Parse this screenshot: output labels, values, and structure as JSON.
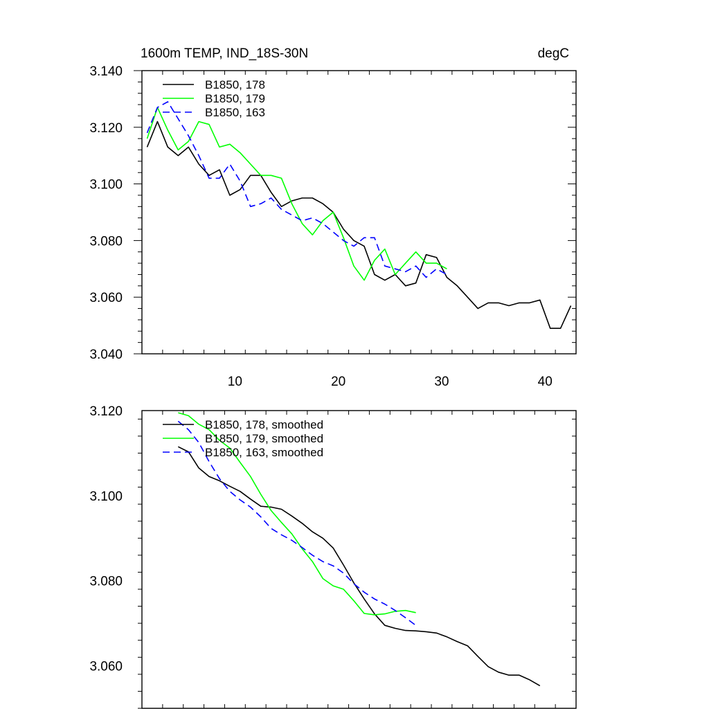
{
  "chart_data": [
    {
      "type": "line",
      "title": "1600m TEMP, IND_18S-30N",
      "units": "degC",
      "xlabel": "",
      "ylabel": "",
      "xlim": [
        1,
        43
      ],
      "ylim": [
        3.04,
        3.14
      ],
      "x_ticks": [
        10,
        20,
        30,
        40
      ],
      "x_tick_labels": [
        "10",
        "20",
        "30",
        "40"
      ],
      "y_ticks": [
        3.04,
        3.06,
        3.08,
        3.1,
        3.12,
        3.14
      ],
      "y_tick_labels": [
        "3.040",
        "3.060",
        "3.080",
        "3.100",
        "3.120",
        "3.140"
      ],
      "legend_position": "top-left",
      "series": [
        {
          "name": "B1850, 178",
          "color": "#000000",
          "dash": "solid",
          "x": [
            1.5,
            2.5,
            3.5,
            4.5,
            5.5,
            6.5,
            7.5,
            8.5,
            9.5,
            10.5,
            11.5,
            12.5,
            13.5,
            14.5,
            15.5,
            16.5,
            17.5,
            18.5,
            19.5,
            20.5,
            21.5,
            22.5,
            23.5,
            24.5,
            25.5,
            26.5,
            27.5,
            28.5,
            29.5,
            30.5,
            31.5,
            32.5,
            33.5,
            34.5,
            35.5,
            36.5,
            37.5,
            38.5,
            39.5,
            40.5,
            41.5,
            42.5
          ],
          "values": [
            3.113,
            3.122,
            3.113,
            3.11,
            3.113,
            3.107,
            3.103,
            3.105,
            3.096,
            3.098,
            3.103,
            3.103,
            3.097,
            3.092,
            3.094,
            3.095,
            3.095,
            3.093,
            3.09,
            3.084,
            3.08,
            3.078,
            3.068,
            3.066,
            3.068,
            3.064,
            3.065,
            3.075,
            3.074,
            3.067,
            3.064,
            3.06,
            3.056,
            3.058,
            3.058,
            3.057,
            3.058,
            3.058,
            3.059,
            3.049,
            3.049,
            3.057
          ]
        },
        {
          "name": "B1850, 179",
          "color": "#00ff00",
          "dash": "solid",
          "x": [
            1.5,
            2.5,
            3.5,
            4.5,
            5.5,
            6.5,
            7.5,
            8.5,
            9.5,
            10.5,
            11.5,
            12.5,
            13.5,
            14.5,
            15.5,
            16.5,
            17.5,
            18.5,
            19.5,
            20.5,
            21.5,
            22.5,
            23.5,
            24.5,
            25.5,
            26.5,
            27.5,
            28.5,
            29.5,
            30.5
          ],
          "values": [
            3.116,
            3.127,
            3.119,
            3.112,
            3.115,
            3.122,
            3.121,
            3.113,
            3.114,
            3.111,
            3.107,
            3.103,
            3.103,
            3.102,
            3.093,
            3.086,
            3.082,
            3.087,
            3.09,
            3.081,
            3.071,
            3.066,
            3.073,
            3.077,
            3.068,
            3.072,
            3.076,
            3.072,
            3.072,
            3.07
          ]
        },
        {
          "name": "B1850, 163",
          "color": "#0000ff",
          "dash": "dashed",
          "x": [
            1.5,
            2.5,
            3.5,
            4.5,
            5.5,
            6.5,
            7.5,
            8.5,
            9.5,
            10.5,
            11.5,
            12.5,
            13.5,
            14.5,
            15.5,
            16.5,
            17.5,
            18.5,
            19.5,
            20.5,
            21.5,
            22.5,
            23.5,
            24.5,
            25.5,
            26.5,
            27.5,
            28.5,
            29.5,
            30.5
          ],
          "values": [
            3.118,
            3.127,
            3.129,
            3.123,
            3.117,
            3.11,
            3.102,
            3.102,
            3.107,
            3.101,
            3.092,
            3.093,
            3.095,
            3.091,
            3.089,
            3.087,
            3.088,
            3.086,
            3.083,
            3.08,
            3.078,
            3.081,
            3.081,
            3.071,
            3.07,
            3.069,
            3.071,
            3.067,
            3.07,
            3.068
          ]
        }
      ]
    },
    {
      "type": "line",
      "title": "",
      "xlabel": "",
      "ylabel": "",
      "xlim": [
        1,
        43
      ],
      "ylim": [
        3.05,
        3.12
      ],
      "x_ticks": [
        10,
        20,
        30,
        40
      ],
      "x_tick_labels": [],
      "y_ticks": [
        3.06,
        3.08,
        3.1,
        3.12
      ],
      "y_tick_labels": [
        "3.060",
        "3.080",
        "3.100",
        "3.120"
      ],
      "legend_position": "top-left",
      "series": [
        {
          "name": "B1850, 178, smoothed",
          "color": "#000000",
          "dash": "solid",
          "x": [
            4.5,
            5.5,
            6.5,
            7.5,
            8.5,
            9.5,
            10.5,
            11.5,
            12.5,
            13.5,
            14.5,
            15.5,
            16.5,
            17.5,
            18.5,
            19.5,
            20.5,
            21.5,
            22.5,
            23.5,
            24.5,
            25.5,
            26.5,
            27.5,
            28.5,
            29.5,
            30.5,
            31.5,
            32.5,
            33.5,
            34.5,
            35.5,
            36.5,
            37.5,
            38.5,
            39.5
          ],
          "values": [
            3.1115,
            3.1103,
            3.1065,
            3.1045,
            3.1035,
            3.1022,
            3.101,
            3.0992,
            3.0975,
            3.0973,
            3.0968,
            3.0952,
            3.0935,
            3.0915,
            3.09,
            3.0877,
            3.0837,
            3.0795,
            3.0757,
            3.0722,
            3.0695,
            3.0688,
            3.0683,
            3.0682,
            3.068,
            3.0677,
            3.0668,
            3.0657,
            3.0647,
            3.0622,
            3.0598,
            3.0585,
            3.0578,
            3.0578,
            3.0567,
            3.0553
          ]
        },
        {
          "name": "B1850, 179, smoothed",
          "color": "#00ff00",
          "dash": "solid",
          "x": [
            4.5,
            5.5,
            6.5,
            7.5,
            8.5,
            9.5,
            10.5,
            11.5,
            12.5,
            13.5,
            14.5,
            15.5,
            16.5,
            17.5,
            18.5,
            19.5,
            20.5,
            21.5,
            22.5,
            23.5,
            24.5,
            25.5,
            26.5,
            27.5
          ],
          "values": [
            3.1195,
            3.1188,
            3.1168,
            3.1155,
            3.113,
            3.1112,
            3.1078,
            3.1045,
            3.1003,
            3.0965,
            3.0937,
            3.091,
            3.0875,
            3.0845,
            3.0805,
            3.0788,
            3.078,
            3.0753,
            3.0723,
            3.072,
            3.0722,
            3.0728,
            3.073,
            3.0725
          ]
        },
        {
          "name": "B1850, 163, smoothed",
          "color": "#0000ff",
          "dash": "dashed",
          "x": [
            4.5,
            5.5,
            6.5,
            7.5,
            8.5,
            9.5,
            10.5,
            11.5,
            12.5,
            13.5,
            14.5,
            15.5,
            16.5,
            17.5,
            18.5,
            19.5,
            20.5,
            21.5,
            22.5,
            23.5,
            24.5,
            25.5,
            26.5,
            27.5
          ],
          "values": [
            3.1175,
            3.1155,
            3.1125,
            3.108,
            3.104,
            3.101,
            3.099,
            3.0973,
            3.095,
            3.0923,
            3.0908,
            3.0895,
            3.0878,
            3.086,
            3.0845,
            3.0835,
            3.0818,
            3.0793,
            3.0773,
            3.0757,
            3.0745,
            3.073,
            3.0713,
            3.0695
          ]
        }
      ]
    }
  ]
}
